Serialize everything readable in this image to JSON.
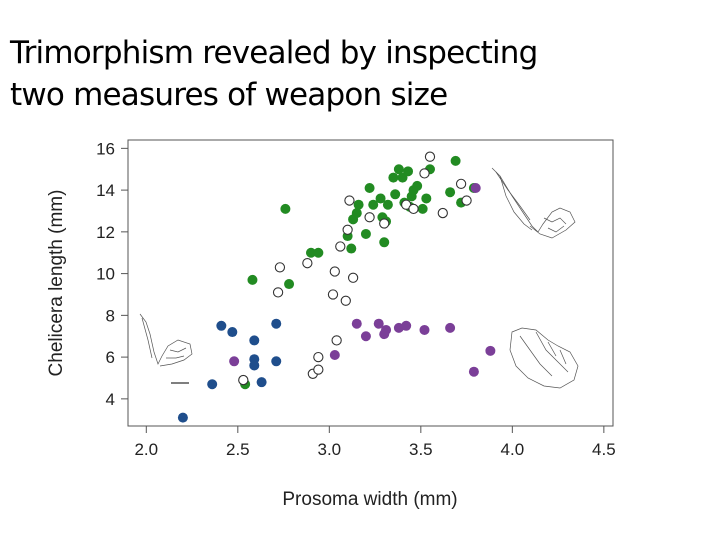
{
  "slide": {
    "title_line1": "Trimorphism revealed by inspecting",
    "title_line2": "two measures of weapon size"
  },
  "chart_data": {
    "type": "scatter",
    "title": "Trimorphism revealed by inspecting two measures of weapon size",
    "xlabel": "Prosoma width (mm)",
    "ylabel": "Chelicera length (mm)",
    "xlim": [
      1.9,
      4.55
    ],
    "ylim": [
      2.7,
      16.4
    ],
    "xticks": [
      2.0,
      2.5,
      3.0,
      3.5,
      4.0,
      4.5
    ],
    "yticks": [
      4,
      6,
      8,
      10,
      12,
      14,
      16
    ],
    "xtick_labels": [
      "2.0",
      "2.5",
      "3.0",
      "3.5",
      "4.0",
      "4.5"
    ],
    "ytick_labels": [
      "4",
      "6",
      "8",
      "10",
      "12",
      "14",
      "16"
    ],
    "grid": false,
    "legend": null,
    "colors": {
      "blue": "#1f4e8c",
      "green": "#228b22",
      "purple": "#7b3f98",
      "open": "#333333"
    },
    "series": [
      {
        "color": "blue",
        "marker": "filled",
        "points": [
          [
            2.2,
            3.1
          ],
          [
            2.36,
            4.7
          ],
          [
            2.41,
            7.5
          ],
          [
            2.47,
            7.2
          ],
          [
            2.59,
            6.8
          ],
          [
            2.59,
            5.9
          ],
          [
            2.59,
            5.6
          ],
          [
            2.63,
            4.8
          ],
          [
            2.71,
            7.6
          ],
          [
            2.71,
            5.8
          ]
        ]
      },
      {
        "color": "green",
        "marker": "filled",
        "points": [
          [
            2.54,
            4.7
          ],
          [
            2.58,
            9.7
          ],
          [
            2.76,
            13.1
          ],
          [
            2.78,
            9.5
          ],
          [
            2.9,
            11.0
          ],
          [
            2.94,
            11.0
          ],
          [
            3.1,
            11.8
          ],
          [
            3.12,
            11.2
          ],
          [
            3.13,
            12.6
          ],
          [
            3.15,
            12.9
          ],
          [
            3.16,
            13.3
          ],
          [
            3.2,
            11.9
          ],
          [
            3.22,
            14.1
          ],
          [
            3.24,
            13.3
          ],
          [
            3.28,
            13.6
          ],
          [
            3.29,
            12.7
          ],
          [
            3.3,
            11.5
          ],
          [
            3.31,
            12.5
          ],
          [
            3.32,
            13.3
          ],
          [
            3.35,
            14.6
          ],
          [
            3.36,
            13.8
          ],
          [
            3.38,
            15.0
          ],
          [
            3.4,
            14.6
          ],
          [
            3.41,
            13.4
          ],
          [
            3.43,
            14.9
          ],
          [
            3.44,
            13.2
          ],
          [
            3.45,
            13.7
          ],
          [
            3.46,
            14.0
          ],
          [
            3.48,
            14.2
          ],
          [
            3.51,
            13.1
          ],
          [
            3.53,
            13.6
          ],
          [
            3.55,
            15.0
          ],
          [
            3.66,
            13.9
          ],
          [
            3.69,
            15.4
          ],
          [
            3.72,
            13.4
          ],
          [
            3.79,
            14.1
          ]
        ]
      },
      {
        "color": "purple",
        "marker": "filled",
        "points": [
          [
            2.48,
            5.8
          ],
          [
            3.03,
            6.1
          ],
          [
            3.15,
            7.6
          ],
          [
            3.2,
            7.0
          ],
          [
            3.27,
            7.6
          ],
          [
            3.3,
            7.1
          ],
          [
            3.31,
            7.3
          ],
          [
            3.38,
            7.4
          ],
          [
            3.42,
            7.5
          ],
          [
            3.52,
            7.3
          ],
          [
            3.66,
            7.4
          ],
          [
            3.79,
            5.3
          ],
          [
            3.8,
            14.1
          ],
          [
            3.88,
            6.3
          ]
        ]
      },
      {
        "color": "open",
        "marker": "open",
        "points": [
          [
            2.53,
            4.9
          ],
          [
            2.72,
            9.1
          ],
          [
            2.73,
            10.3
          ],
          [
            2.88,
            10.5
          ],
          [
            2.91,
            5.2
          ],
          [
            2.94,
            5.4
          ],
          [
            2.94,
            6.0
          ],
          [
            3.02,
            9.0
          ],
          [
            3.03,
            10.1
          ],
          [
            3.04,
            6.8
          ],
          [
            3.06,
            11.3
          ],
          [
            3.09,
            8.7
          ],
          [
            3.1,
            12.1
          ],
          [
            3.11,
            13.5
          ],
          [
            3.13,
            9.8
          ],
          [
            3.22,
            12.7
          ],
          [
            3.3,
            12.4
          ],
          [
            3.42,
            13.3
          ],
          [
            3.46,
            13.1
          ],
          [
            3.52,
            14.8
          ],
          [
            3.55,
            15.6
          ],
          [
            3.62,
            12.9
          ],
          [
            3.72,
            14.3
          ],
          [
            3.75,
            13.5
          ]
        ]
      }
    ]
  }
}
